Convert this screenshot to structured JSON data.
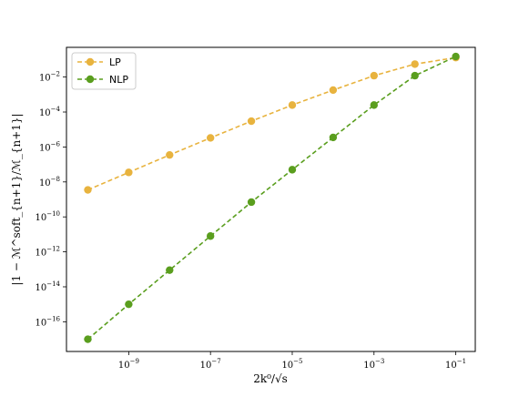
{
  "chart_data": {
    "type": "line",
    "xlabel": "2k⁰/√s",
    "ylabel": "|1 − ℳ^soft_{n+1}/ℳ_{n+1}|",
    "xscale": "log",
    "yscale": "log",
    "xlim": [
      3e-11,
      0.3
    ],
    "ylim": [
      2e-18,
      0.5
    ],
    "grid": false,
    "legend_position": "top-left",
    "x_ticks": [
      {
        "value": 1e-09,
        "base": "10",
        "exp": "−9"
      },
      {
        "value": 1e-07,
        "base": "10",
        "exp": "−7"
      },
      {
        "value": 1e-05,
        "base": "10",
        "exp": "−5"
      },
      {
        "value": 0.001,
        "base": "10",
        "exp": "−3"
      },
      {
        "value": 0.1,
        "base": "10",
        "exp": "−1"
      }
    ],
    "y_ticks": [
      {
        "value": 1e-16,
        "base": "10",
        "exp": "−16"
      },
      {
        "value": 1e-14,
        "base": "10",
        "exp": "−14"
      },
      {
        "value": 1e-12,
        "base": "10",
        "exp": "−12"
      },
      {
        "value": 1e-10,
        "base": "10",
        "exp": "−10"
      },
      {
        "value": 1e-08,
        "base": "10",
        "exp": "−8"
      },
      {
        "value": 1e-06,
        "base": "10",
        "exp": "−6"
      },
      {
        "value": 0.0001,
        "base": "10",
        "exp": "−4"
      },
      {
        "value": 0.01,
        "base": "10",
        "exp": "−2"
      }
    ],
    "x": [
      1e-10,
      1e-09,
      1e-08,
      1e-07,
      1e-06,
      1e-05,
      0.0001,
      0.001,
      0.01,
      0.1
    ],
    "series": [
      {
        "name": "LP",
        "color": "#e8b33e",
        "values": [
          3.5e-09,
          3.5e-08,
          3.5e-07,
          3.3e-06,
          3e-05,
          0.00025,
          0.0018,
          0.012,
          0.055,
          0.13
        ]
      },
      {
        "name": "NLP",
        "color": "#5a9e1e",
        "values": [
          1e-17,
          1e-15,
          9e-14,
          8e-12,
          7e-10,
          5e-08,
          3.5e-06,
          0.00025,
          0.012,
          0.15
        ]
      }
    ]
  }
}
